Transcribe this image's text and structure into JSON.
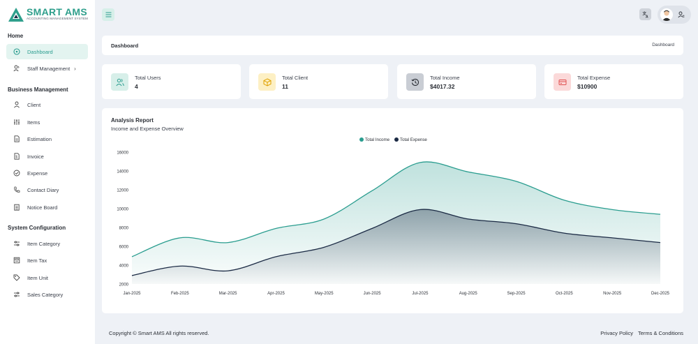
{
  "brand": {
    "title": "SMART AMS",
    "subtitle": "ACCOUNTING MANAGEMENT SYSTEM",
    "accent": "#2f9f8c"
  },
  "sidebar": {
    "sections": [
      {
        "title": "Home",
        "items": [
          {
            "label": "Dashboard",
            "icon": "dashboard-icon",
            "active": true
          },
          {
            "label": "Staff Management",
            "icon": "staff-icon",
            "chevron": "›"
          }
        ]
      },
      {
        "title": "Business Management",
        "items": [
          {
            "label": "Client",
            "icon": "user-icon"
          },
          {
            "label": "Items",
            "icon": "sliders-icon"
          },
          {
            "label": "Estimation",
            "icon": "document-icon"
          },
          {
            "label": "Invoice",
            "icon": "invoice-icon"
          },
          {
            "label": "Expense",
            "icon": "check-circle-icon"
          },
          {
            "label": "Contact Diary",
            "icon": "phone-icon"
          },
          {
            "label": "Notice Board",
            "icon": "clipboard-icon"
          }
        ]
      },
      {
        "title": "System Configuration",
        "items": [
          {
            "label": "Item Category",
            "icon": "category-icon"
          },
          {
            "label": "Item Tax",
            "icon": "tax-icon"
          },
          {
            "label": "Item Unit",
            "icon": "tag-icon"
          },
          {
            "label": "Sales Category",
            "icon": "sales-category-icon"
          }
        ]
      }
    ]
  },
  "header": {
    "page_title": "Dashboard",
    "breadcrumb": "Dashboard"
  },
  "stats": [
    {
      "label": "Total Users",
      "value": "4",
      "icon": "users-icon",
      "bg": "#d7efe9",
      "color": "#2a9d8f"
    },
    {
      "label": "Total Client",
      "value": "11",
      "icon": "box-icon",
      "bg": "#fdf0c4",
      "color": "#e0a100"
    },
    {
      "label": "Total Income",
      "value": "$4017.32",
      "icon": "history-icon",
      "bg": "#c9cdd4",
      "color": "#2b2f36"
    },
    {
      "label": "Total Expense",
      "value": "$10900",
      "icon": "credit-card-icon",
      "bg": "#fbd9d9",
      "color": "#e05050"
    }
  ],
  "chart": {
    "title": "Analysis Report",
    "subtitle": "Income and Expense Overview"
  },
  "chart_data": {
    "type": "area",
    "categories": [
      "Jan-2025",
      "Feb-2025",
      "Mar-2025",
      "Apr-2025",
      "May-2025",
      "Jun-2025",
      "Jul-2025",
      "Aug-2025",
      "Sep-2025",
      "Oct-2025",
      "Nov-2025",
      "Dec-2025"
    ],
    "series": [
      {
        "name": "Total Income",
        "color": "#2a9d8f",
        "values": [
          4900,
          6900,
          6400,
          7900,
          8900,
          11900,
          14900,
          13900,
          12900,
          10900,
          9900,
          9400
        ]
      },
      {
        "name": "Total Expense",
        "color": "#1b2a44",
        "values": [
          2900,
          3900,
          3400,
          4900,
          5900,
          7900,
          9900,
          8900,
          8400,
          7400,
          6900,
          6400
        ]
      }
    ],
    "ylim": [
      2000,
      16000
    ],
    "yticks": [
      2000,
      4000,
      6000,
      8000,
      10000,
      12000,
      14000,
      16000
    ],
    "legend": "top-center",
    "grid": false
  },
  "footer": {
    "copyright": "Copyright © Smart AMS All rights reserved.",
    "links": [
      "Privacy Policy",
      "Terms & Conditions"
    ]
  }
}
